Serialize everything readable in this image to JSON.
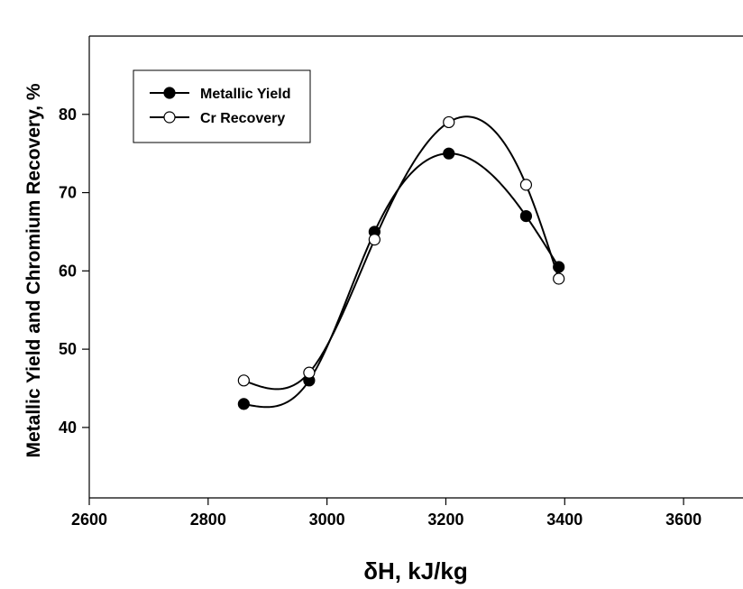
{
  "chart_data": {
    "type": "line",
    "title": "",
    "xlabel": "δH, kJ/kg",
    "ylabel": "Metallic Yield and Chromium Recovery, %",
    "xlim": [
      2600,
      3700
    ],
    "ylim": [
      31,
      90
    ],
    "x_ticks": [
      "2600",
      "2800",
      "3000",
      "3200",
      "3400",
      "3600"
    ],
    "y_ticks": [
      "40",
      "50",
      "60",
      "70",
      "80"
    ],
    "grid": false,
    "legend_position": "top-left",
    "series": [
      {
        "name": "Metallic Yield",
        "marker": "filled-circle",
        "color": "#000000",
        "x": [
          2860,
          2970,
          3080,
          3205,
          3335,
          3390
        ],
        "y": [
          43,
          46,
          65,
          75,
          67,
          60.5
        ]
      },
      {
        "name": "Cr Recovery",
        "marker": "open-circle",
        "color": "#000000",
        "x": [
          2860,
          2970,
          3080,
          3205,
          3335,
          3390
        ],
        "y": [
          46,
          47,
          64,
          79,
          71,
          59
        ]
      }
    ]
  }
}
